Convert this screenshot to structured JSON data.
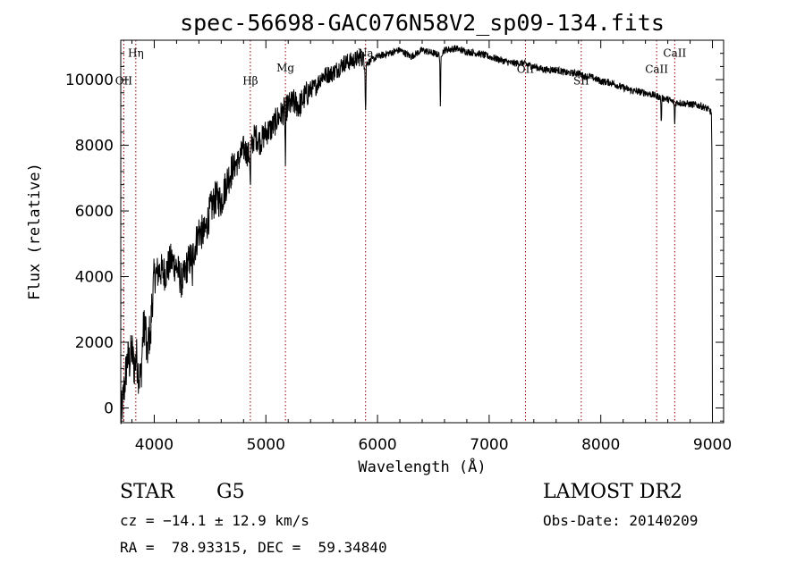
{
  "chart_data": {
    "type": "line",
    "title": "spec-56698-GAC076N58V2_sp09-134.fits",
    "xlabel": "Wavelength (Å)",
    "ylabel": "Flux (relative)",
    "xlim": [
      3700,
      9100
    ],
    "ylim": [
      -450,
      11200
    ],
    "x_ticks": [
      4000,
      5000,
      6000,
      7000,
      8000,
      9000
    ],
    "y_ticks": [
      0,
      2000,
      4000,
      6000,
      8000,
      10000
    ],
    "x_tick_labels": [
      "4000",
      "5000",
      "6000",
      "7000",
      "8000",
      "9000"
    ],
    "y_tick_labels": [
      "0",
      "2000",
      "4000",
      "6000",
      "8000",
      "10000"
    ],
    "spectrum": {
      "x": [
        3700,
        3720,
        3740,
        3760,
        3780,
        3800,
        3820,
        3840,
        3860,
        3880,
        3900,
        3920,
        3940,
        3960,
        3980,
        4000,
        4050,
        4100,
        4150,
        4200,
        4250,
        4300,
        4350,
        4400,
        4450,
        4500,
        4550,
        4600,
        4650,
        4700,
        4750,
        4800,
        4850,
        4900,
        4950,
        5000,
        5050,
        5100,
        5150,
        5200,
        5250,
        5300,
        5350,
        5400,
        5450,
        5500,
        5600,
        5700,
        5800,
        5850,
        5900,
        5950,
        6000,
        6100,
        6200,
        6300,
        6400,
        6500,
        6560,
        6600,
        6700,
        6800,
        6900,
        7000,
        7100,
        7200,
        7300,
        7400,
        7500,
        7600,
        7700,
        7800,
        7850,
        7900,
        8000,
        8100,
        8200,
        8300,
        8400,
        8500,
        8540,
        8600,
        8660,
        8700,
        8800,
        8900,
        8960,
        8990,
        8995,
        9000
      ],
      "y": [
        -300,
        200,
        900,
        1500,
        1400,
        1800,
        1200,
        1600,
        1000,
        900,
        2300,
        2600,
        1800,
        2300,
        3200,
        4000,
        4200,
        4100,
        4500,
        4300,
        3800,
        4400,
        4700,
        5400,
        5300,
        6000,
        6400,
        6300,
        6900,
        7300,
        7500,
        7900,
        7700,
        8300,
        8100,
        8400,
        8500,
        8800,
        9000,
        9200,
        9300,
        9200,
        9500,
        9700,
        9800,
        10100,
        10200,
        10500,
        10600,
        10700,
        10500,
        10600,
        10700,
        10800,
        10900,
        10700,
        10900,
        10800,
        10750,
        10900,
        10950,
        10850,
        10800,
        10700,
        10600,
        10500,
        10500,
        10400,
        10300,
        10300,
        10200,
        10200,
        10100,
        10100,
        9950,
        9900,
        9750,
        9650,
        9600,
        9500,
        9450,
        9400,
        9300,
        9300,
        9250,
        9200,
        9100,
        9000,
        7800,
        -300
      ],
      "absorption_dips": [
        {
          "x": 3933,
          "depth": 800
        },
        {
          "x": 3968,
          "depth": 700
        },
        {
          "x": 4340,
          "depth": 900
        },
        {
          "x": 4861,
          "depth": 1200
        },
        {
          "x": 5175,
          "depth": 1700
        },
        {
          "x": 5893,
          "depth": 1500
        },
        {
          "x": 6563,
          "depth": 1700
        },
        {
          "x": 8542,
          "depth": 800
        },
        {
          "x": 8662,
          "depth": 700
        }
      ]
    },
    "line_markers": [
      {
        "label": "Hη",
        "x": 3835,
        "label_y": 10700
      },
      {
        "label": "OII",
        "x": 3727,
        "label_y": 9850
      },
      {
        "label": "Hβ",
        "x": 4861,
        "label_y": 9850
      },
      {
        "label": "Mg",
        "x": 5175,
        "label_y": 10250
      },
      {
        "label": "Na",
        "x": 5893,
        "label_y": 10700
      },
      {
        "label": "OII",
        "x": 7325,
        "label_y": 10200
      },
      {
        "label": "SII",
        "x": 7825,
        "label_y": 9850
      },
      {
        "label": "CaII",
        "x": 8500,
        "label_y": 10200
      },
      {
        "label": "CaII",
        "x": 8662,
        "label_y": 10700
      }
    ]
  },
  "info": {
    "object_class": "STAR",
    "subclass": "G5",
    "survey": "LAMOST DR2",
    "redshift": "cz = −14.1 ± 12.9 km/s",
    "obs_date": "Obs-Date: 20140209",
    "coords": "RA =  78.93315, DEC =  59.34840"
  },
  "colors": {
    "spectrum": "#000000",
    "marker": "#8b0000"
  }
}
